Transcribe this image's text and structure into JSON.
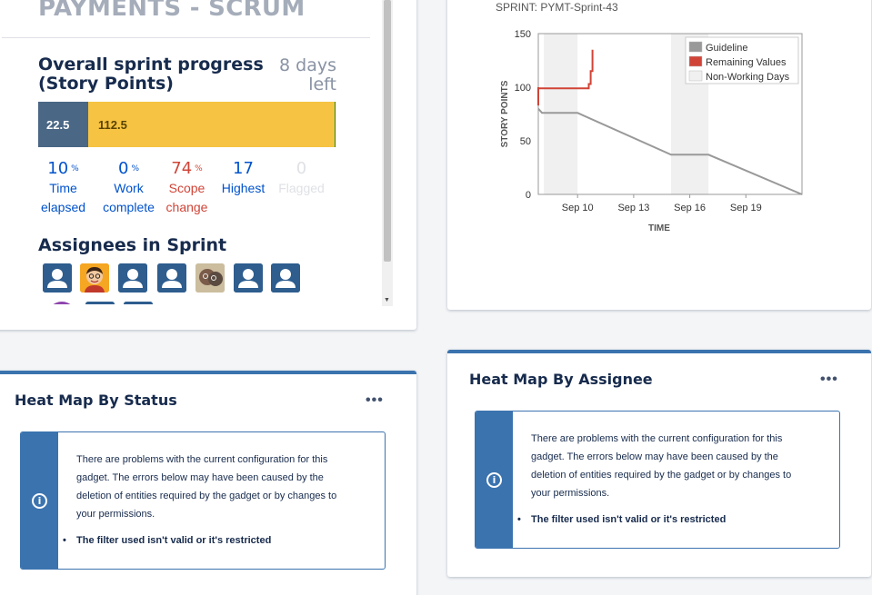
{
  "sprint": {
    "project_title": "PAYMENTS - SCRUM",
    "progress_heading_line1": "Overall sprint progress",
    "progress_heading_line2": "(Story Points)",
    "days_left_line1": "8 days",
    "days_left_line2": "left",
    "progress": {
      "done_value": "22.5",
      "remaining_value": "112.5",
      "done_fraction": 0.167
    },
    "stats": [
      {
        "value": "10",
        "suffix": "%",
        "label1": "Time",
        "label2": "elapsed"
      },
      {
        "value": "0",
        "suffix": "%",
        "label1": "Work",
        "label2": "complete"
      },
      {
        "value": "74",
        "suffix": "%",
        "label1": "Scope",
        "label2": "change"
      },
      {
        "value": "17",
        "suffix": "",
        "label1": "Highest",
        "label2": ""
      },
      {
        "value": "0",
        "suffix": "",
        "label1": "Flagged",
        "label2": ""
      }
    ],
    "assignees_heading": "Assignees in Sprint",
    "scroll_arrow": "▼"
  },
  "chart_data": {
    "type": "line",
    "title": "SPRINT: PYMT-Sprint-43",
    "xlabel": "TIME",
    "ylabel": "STORY POINTS",
    "ylim": [
      0,
      150
    ],
    "yticks": [
      0,
      50,
      100,
      150
    ],
    "xticks": [
      "Sep 10",
      "Sep 13",
      "Sep 16",
      "Sep 19"
    ],
    "xlim_days": [
      7.9,
      22.0
    ],
    "x_tick_days": [
      10,
      13,
      16,
      19
    ],
    "non_working_periods": [
      [
        8.2,
        10.0
      ],
      [
        15.0,
        17.0
      ]
    ],
    "series": [
      {
        "name": "Guideline",
        "color": "#999999",
        "points": [
          [
            7.9,
            80
          ],
          [
            8.1,
            76
          ],
          [
            10.0,
            76
          ],
          [
            15.0,
            37
          ],
          [
            17.0,
            37
          ],
          [
            22.0,
            0
          ]
        ]
      },
      {
        "name": "Remaining Values",
        "color": "#d04437",
        "points": [
          [
            7.9,
            100
          ],
          [
            7.9,
            83
          ],
          [
            7.9,
            99
          ],
          [
            10.6,
            99
          ],
          [
            10.6,
            103
          ],
          [
            10.7,
            103
          ],
          [
            10.7,
            115
          ],
          [
            10.8,
            115
          ],
          [
            10.8,
            135
          ]
        ]
      }
    ],
    "legend": [
      {
        "label": "Guideline",
        "color": "#999999"
      },
      {
        "label": "Remaining Values",
        "color": "#d04437"
      },
      {
        "label": "Non-Working Days",
        "color": "#f0f0f0"
      }
    ]
  },
  "heat_status": {
    "title": "Heat Map By Status",
    "more_label": "•••",
    "info_icon": "i",
    "message": "There are problems with the current configuration for this gadget. The errors below may have been caused by the deletion of entities required by the gadget or by changes to your permissions.",
    "error": "The filter used isn't valid or it's restricted"
  },
  "heat_assignee": {
    "title": "Heat Map By Assignee",
    "more_label": "•••",
    "info_icon": "i",
    "message": "There are problems with the current configuration for this gadget. The errors below may have been caused by the deletion of entities required by the gadget or by changes to your permissions.",
    "error": "The filter used isn't valid or it's restricted"
  }
}
